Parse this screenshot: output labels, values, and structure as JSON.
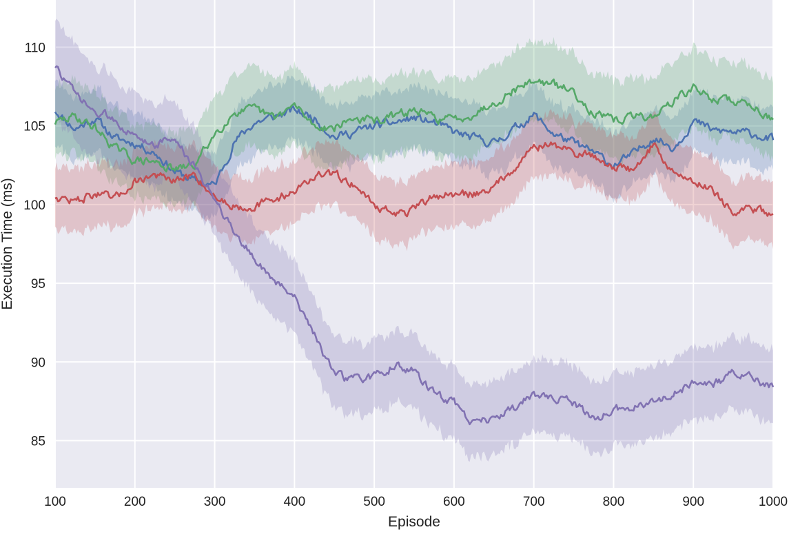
{
  "chart_data": {
    "type": "line",
    "title": "",
    "xlabel": "Episode",
    "ylabel": "Execution Time (ms)",
    "xlim": [
      100,
      1000
    ],
    "ylim": [
      82.0,
      113.0
    ],
    "xticks": [
      100,
      200,
      300,
      400,
      500,
      600,
      700,
      800,
      900,
      1000
    ],
    "yticks": [
      85,
      90,
      95,
      100,
      105,
      110
    ],
    "grid": true,
    "legend": "none",
    "background": "#eaeaf2",
    "grid_color": "#ffffff",
    "x": [
      100,
      125,
      150,
      175,
      200,
      225,
      250,
      275,
      300,
      325,
      350,
      375,
      400,
      425,
      450,
      475,
      500,
      525,
      550,
      575,
      600,
      625,
      650,
      675,
      700,
      725,
      750,
      775,
      800,
      825,
      850,
      875,
      900,
      925,
      950,
      975,
      1000
    ],
    "series": [
      {
        "color": "#4c72b0",
        "values": [
          106.0,
          104.8,
          105.5,
          104.2,
          103.9,
          103.3,
          102.1,
          101.5,
          101.2,
          104.0,
          105.2,
          105.6,
          106.0,
          105.5,
          104.3,
          104.6,
          105.0,
          105.2,
          105.5,
          105.2,
          104.6,
          104.2,
          103.9,
          104.8,
          105.7,
          104.5,
          103.9,
          103.3,
          102.5,
          103.2,
          104.3,
          103.6,
          105.3,
          104.7,
          104.6,
          104.5,
          104.1
        ],
        "band": [
          2.1,
          2.0,
          2.0,
          2.0,
          2.0,
          2.0,
          2.0,
          2.0,
          2.0,
          2.0,
          2.0,
          2.0,
          2.0,
          2.0,
          2.0,
          2.0,
          2.0,
          2.0,
          2.0,
          2.0,
          2.0,
          2.0,
          2.0,
          2.0,
          2.0,
          2.0,
          2.0,
          2.0,
          2.1,
          2.0,
          2.0,
          2.0,
          2.0,
          2.0,
          2.0,
          2.0,
          2.0
        ]
      },
      {
        "color": "#55a868",
        "values": [
          105.2,
          105.6,
          104.9,
          103.6,
          102.8,
          102.7,
          102.2,
          102.5,
          104.5,
          105.9,
          106.0,
          105.5,
          106.3,
          105.0,
          104.9,
          105.5,
          105.3,
          105.6,
          106.0,
          105.5,
          105.4,
          105.8,
          106.5,
          107.3,
          107.9,
          107.6,
          107.2,
          105.8,
          105.3,
          105.6,
          105.6,
          106.6,
          107.4,
          106.7,
          106.6,
          106.3,
          105.4
        ],
        "band": [
          2.3,
          2.3,
          2.3,
          2.3,
          2.3,
          2.3,
          2.3,
          2.3,
          2.4,
          2.5,
          2.5,
          2.5,
          2.5,
          2.5,
          2.5,
          2.5,
          2.5,
          2.5,
          2.5,
          2.5,
          2.5,
          2.5,
          2.5,
          2.5,
          2.5,
          2.5,
          2.5,
          2.5,
          2.5,
          2.5,
          2.5,
          2.5,
          2.5,
          2.5,
          2.5,
          2.5,
          2.5
        ]
      },
      {
        "color": "#c44e52",
        "values": [
          100.5,
          100.2,
          100.7,
          100.3,
          101.5,
          101.9,
          101.4,
          101.9,
          100.5,
          99.9,
          99.9,
          100.3,
          100.9,
          101.8,
          101.9,
          101.3,
          100.0,
          99.4,
          99.6,
          100.6,
          100.6,
          100.7,
          101.1,
          102.4,
          103.7,
          103.8,
          103.3,
          103.1,
          102.4,
          102.2,
          103.8,
          102.0,
          101.5,
          101.0,
          99.4,
          99.7,
          99.4
        ],
        "band": [
          2.0,
          2.0,
          2.0,
          2.0,
          2.0,
          2.0,
          2.0,
          2.0,
          2.0,
          2.0,
          2.0,
          2.0,
          2.0,
          2.0,
          2.0,
          2.0,
          2.0,
          2.0,
          2.0,
          2.0,
          2.0,
          2.0,
          2.0,
          2.0,
          2.0,
          2.0,
          2.0,
          2.0,
          2.0,
          2.0,
          2.0,
          2.0,
          2.0,
          2.0,
          2.0,
          2.0,
          2.0
        ]
      },
      {
        "color": "#8172b2",
        "values": [
          108.8,
          107.0,
          105.8,
          105.5,
          104.2,
          103.9,
          104.2,
          102.3,
          100.5,
          98.2,
          96.6,
          95.0,
          94.3,
          91.8,
          89.1,
          88.9,
          89.0,
          89.8,
          89.4,
          88.0,
          87.4,
          86.1,
          86.5,
          87.0,
          88.0,
          87.6,
          87.4,
          86.4,
          86.9,
          87.2,
          87.5,
          87.9,
          88.7,
          88.5,
          89.3,
          88.9,
          88.4
        ],
        "band": [
          3.1,
          3.0,
          2.9,
          2.8,
          2.7,
          2.6,
          2.5,
          2.4,
          2.3,
          2.3,
          2.3,
          2.3,
          2.3,
          2.3,
          2.3,
          2.3,
          2.3,
          2.3,
          2.3,
          2.3,
          2.3,
          2.3,
          2.3,
          2.3,
          2.3,
          2.3,
          2.3,
          2.3,
          2.3,
          2.3,
          2.3,
          2.3,
          2.3,
          2.3,
          2.3,
          2.3,
          2.3
        ]
      }
    ]
  }
}
